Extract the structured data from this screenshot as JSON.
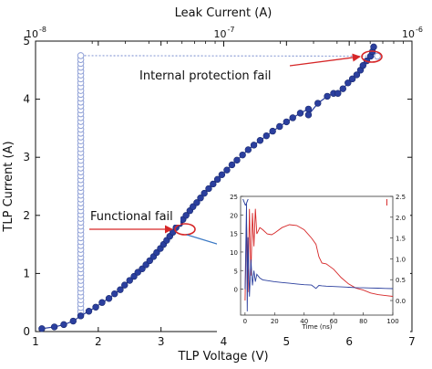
{
  "chart_data": [
    {
      "type": "scatter",
      "title": "",
      "xlabel": "TLP Voltage (V)",
      "ylabel": "TLP Current (A)",
      "xlim": [
        1,
        7
      ],
      "ylim": [
        0,
        5
      ],
      "xticks": [
        1,
        2,
        3,
        4,
        5,
        6,
        7
      ],
      "xtick_labels": [
        "1",
        "2",
        "3",
        "4",
        "5",
        "6",
        "7"
      ],
      "yticks": [
        0,
        1,
        2,
        3,
        4,
        5
      ],
      "ytick_labels": [
        "0",
        "1",
        "2",
        "3",
        "4",
        "5"
      ],
      "secondary_xaxis": {
        "label": "Leak Current (A)",
        "scale": "log",
        "lim": [
          1e-08,
          1e-06
        ],
        "ticks": [
          1e-08,
          1e-07,
          1e-06
        ],
        "tick_labels": [
          {
            "base": "10",
            "exp": "-8"
          },
          {
            "base": "10",
            "exp": "-7"
          },
          {
            "base": "10",
            "exp": "-6"
          }
        ]
      },
      "grid": false,
      "series": [
        {
          "marker": "filled-circle",
          "color": "#2b3f9e",
          "axis": "TLP Voltage",
          "points": [
            [
              1.1,
              0.05
            ],
            [
              1.3,
              0.08
            ],
            [
              1.45,
              0.12
            ],
            [
              1.6,
              0.18
            ],
            [
              1.72,
              0.27
            ],
            [
              1.85,
              0.35
            ],
            [
              1.96,
              0.42
            ],
            [
              2.06,
              0.5
            ],
            [
              2.17,
              0.57
            ],
            [
              2.26,
              0.65
            ],
            [
              2.35,
              0.72
            ],
            [
              2.42,
              0.8
            ],
            [
              2.5,
              0.88
            ],
            [
              2.57,
              0.95
            ],
            [
              2.63,
              1.02
            ],
            [
              2.7,
              1.08
            ],
            [
              2.76,
              1.15
            ],
            [
              2.82,
              1.22
            ],
            [
              2.88,
              1.29
            ],
            [
              2.93,
              1.36
            ],
            [
              2.99,
              1.43
            ],
            [
              3.04,
              1.5
            ],
            [
              3.09,
              1.57
            ],
            [
              3.14,
              1.64
            ],
            [
              3.19,
              1.71
            ],
            [
              3.24,
              1.79
            ],
            [
              3.3,
              1.86
            ],
            [
              3.35,
              1.93
            ],
            [
              3.4,
              2.0
            ],
            [
              3.46,
              2.08
            ],
            [
              3.51,
              2.15
            ],
            [
              3.57,
              2.22
            ],
            [
              3.63,
              2.3
            ],
            [
              3.69,
              2.38
            ],
            [
              3.76,
              2.46
            ],
            [
              3.83,
              2.54
            ],
            [
              3.9,
              2.62
            ],
            [
              3.97,
              2.7
            ],
            [
              4.05,
              2.78
            ],
            [
              4.13,
              2.87
            ],
            [
              4.21,
              2.95
            ],
            [
              4.3,
              3.04
            ],
            [
              4.39,
              3.13
            ],
            [
              4.48,
              3.21
            ],
            [
              4.58,
              3.29
            ],
            [
              4.68,
              3.37
            ],
            [
              4.78,
              3.45
            ],
            [
              4.89,
              3.53
            ],
            [
              5.0,
              3.61
            ],
            [
              5.1,
              3.68
            ],
            [
              5.22,
              3.76
            ],
            [
              5.35,
              3.83
            ],
            [
              5.35,
              3.73
            ],
            [
              5.5,
              3.93
            ],
            [
              5.65,
              4.05
            ],
            [
              5.75,
              4.1
            ],
            [
              5.82,
              4.1
            ],
            [
              5.9,
              4.18
            ],
            [
              5.98,
              4.28
            ],
            [
              6.05,
              4.35
            ],
            [
              6.12,
              4.42
            ],
            [
              6.18,
              4.5
            ],
            [
              6.22,
              4.58
            ],
            [
              6.28,
              4.66
            ],
            [
              6.34,
              4.74
            ],
            [
              6.37,
              4.82
            ],
            [
              6.39,
              4.9
            ]
          ]
        },
        {
          "marker": "open-circle",
          "color": "#8e9fd6",
          "axis": "Leak Current",
          "x_value": 1.72,
          "y_start": 0.28,
          "y_end": 4.75,
          "count": 68,
          "top_dotted_to_x": 6.45,
          "top_dotted_y": 4.74
        }
      ],
      "annotations": [
        {
          "text": "Internal protection fail",
          "target": [
            6.35,
            4.76
          ]
        },
        {
          "text": "Functional fail",
          "target": [
            3.4,
            1.78
          ]
        }
      ]
    },
    {
      "type": "line",
      "title": "",
      "xlabel": "Time (ns)",
      "xlim": [
        -3,
        100
      ],
      "xticks": [
        0,
        20,
        40,
        60,
        80,
        100
      ],
      "xtick_labels": [
        "0",
        "20",
        "40",
        "60",
        "80",
        "100"
      ],
      "ylim_left": [
        -7,
        25
      ],
      "yticks_left": [
        0,
        5,
        10,
        15,
        20,
        25
      ],
      "ytick_labels_left": [
        "0",
        "5",
        "10",
        "15",
        "20",
        "25"
      ],
      "ylim_right": [
        -0.35,
        2.5
      ],
      "yticks_right": [
        0.0,
        0.5,
        1.0,
        1.5,
        2.0,
        2.5
      ],
      "ytick_labels_right": [
        "0.0",
        "0.5",
        "1.0",
        "1.5",
        "2.0",
        "2.5"
      ],
      "left_axis_marker": "V",
      "right_axis_marker": "I",
      "series": [
        {
          "color": "#d62728",
          "axis": "right",
          "x": [
            0,
            1,
            2,
            3,
            4,
            5,
            6,
            7,
            8,
            10,
            12,
            15,
            18,
            20,
            25,
            30,
            35,
            40,
            45,
            48,
            50,
            52,
            55,
            60,
            65,
            70,
            75,
            80,
            85,
            90,
            95,
            100
          ],
          "y": [
            0.0,
            1.9,
            0.2,
            2.2,
            0.6,
            2.1,
            1.3,
            2.2,
            1.6,
            1.75,
            1.7,
            1.6,
            1.58,
            1.62,
            1.75,
            1.82,
            1.8,
            1.7,
            1.5,
            1.35,
            1.05,
            0.9,
            0.88,
            0.75,
            0.55,
            0.4,
            0.3,
            0.25,
            0.18,
            0.14,
            0.12,
            0.1
          ]
        },
        {
          "color": "#2b3f9e",
          "axis": "left",
          "x": [
            0,
            1,
            1.5,
            2,
            3,
            4,
            5,
            6,
            7,
            8,
            10,
            12,
            15,
            20,
            25,
            30,
            35,
            40,
            45,
            48,
            50,
            52,
            55,
            60,
            65,
            70,
            75,
            80,
            85,
            90,
            95,
            100
          ],
          "y": [
            0,
            23,
            -6,
            14,
            -2,
            8,
            1,
            5,
            2,
            4,
            3,
            2.5,
            2.3,
            2.0,
            1.8,
            1.6,
            1.4,
            1.2,
            1.1,
            0.2,
            1.0,
            0.9,
            0.8,
            0.7,
            0.6,
            0.5,
            0.4,
            0.35,
            0.3,
            0.25,
            0.2,
            0.15
          ]
        }
      ]
    }
  ]
}
